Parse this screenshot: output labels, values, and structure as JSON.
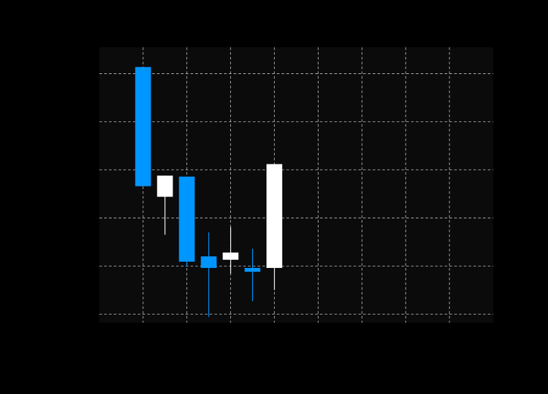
{
  "colors": {
    "page_background": "#000000",
    "plot_background": "#0b0b0b",
    "grid": "#c8c8c8",
    "up": "#ffffff",
    "down": "#0096ff"
  },
  "chart_data": {
    "type": "candlestick",
    "title": "",
    "xlabel": "",
    "ylabel": "",
    "xlim": [
      0,
      9
    ],
    "ylim": [
      -1.8,
      55.5
    ],
    "x_gridlines": [
      1,
      2,
      3,
      4,
      5,
      6,
      7,
      8
    ],
    "y_gridlines": [
      0,
      10,
      20,
      30,
      40,
      50
    ],
    "grid": true,
    "candles": [
      {
        "x": 1.0,
        "open": 51.4,
        "high": 51.4,
        "low": 26.6,
        "close": 26.6
      },
      {
        "x": 1.5,
        "open": 24.4,
        "high": 28.8,
        "low": 16.5,
        "close": 28.8
      },
      {
        "x": 2.0,
        "open": 28.6,
        "high": 28.6,
        "low": 9.9,
        "close": 10.9
      },
      {
        "x": 2.5,
        "open": 12.0,
        "high": 17.0,
        "low": -0.6,
        "close": 9.6
      },
      {
        "x": 3.0,
        "open": 11.3,
        "high": 18.1,
        "low": 8.4,
        "close": 12.8
      },
      {
        "x": 3.5,
        "open": 9.6,
        "high": 13.6,
        "low": 2.7,
        "close": 8.8
      },
      {
        "x": 4.0,
        "open": 9.6,
        "high": 31.2,
        "low": 5.0,
        "close": 31.2
      }
    ]
  }
}
